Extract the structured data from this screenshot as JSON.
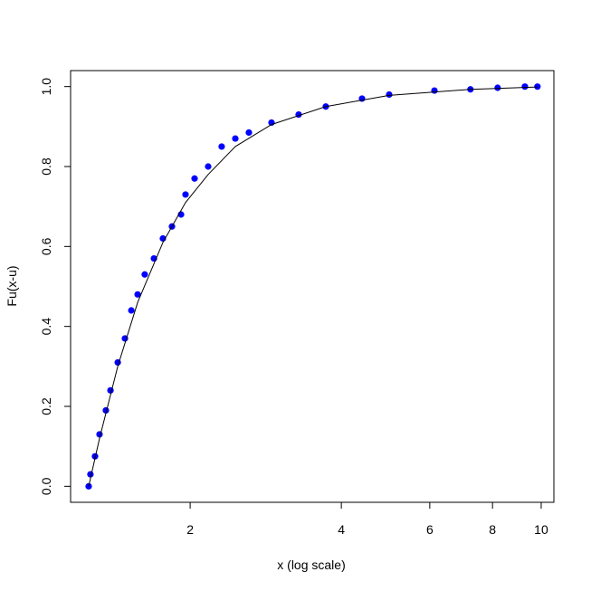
{
  "chart_data": {
    "type": "scatter",
    "xlabel": "x (log scale)",
    "ylabel": "Fu(x-u)",
    "xscale": "log",
    "xlim": [
      1.156,
      10.6
    ],
    "ylim": [
      -0.04,
      1.04
    ],
    "xticks": [
      2,
      4,
      6,
      8,
      10
    ],
    "yticks": [
      {
        "value": 0,
        "label": "0.0"
      },
      0.2,
      0.4,
      0.6,
      0.8,
      {
        "value": 1,
        "label": "1.0"
      }
    ],
    "series": [
      {
        "type": "scatter",
        "color": "#0000ff",
        "x": [
          1.256,
          1.266,
          1.293,
          1.32,
          1.359,
          1.388,
          1.435,
          1.483,
          1.527,
          1.572,
          1.624,
          1.694,
          1.765,
          1.84,
          1.918,
          1.958,
          2.041,
          2.172,
          2.311,
          2.46,
          2.618,
          2.904,
          3.289,
          3.725,
          4.398,
          4.981,
          6.13,
          7.23,
          8.19,
          9.28,
          9.83
        ],
        "values": [
          0,
          0.03,
          0.075,
          0.13,
          0.19,
          0.24,
          0.31,
          0.37,
          0.44,
          0.48,
          0.53,
          0.57,
          0.62,
          0.65,
          0.68,
          0.73,
          0.77,
          0.8,
          0.85,
          0.87,
          0.885,
          0.91,
          0.93,
          0.95,
          0.97,
          0.98,
          0.99,
          0.993,
          0.997,
          1,
          1
        ]
      },
      {
        "type": "line",
        "color": "#000000",
        "x": [
          1.256,
          1.32,
          1.435,
          1.572,
          1.765,
          1.958,
          2.172,
          2.46,
          2.904,
          3.725,
          4.981,
          7.23,
          9.83
        ],
        "values": [
          0,
          0.12,
          0.3,
          0.46,
          0.61,
          0.71,
          0.78,
          0.85,
          0.905,
          0.95,
          0.978,
          0.993,
          0.999
        ]
      }
    ]
  }
}
